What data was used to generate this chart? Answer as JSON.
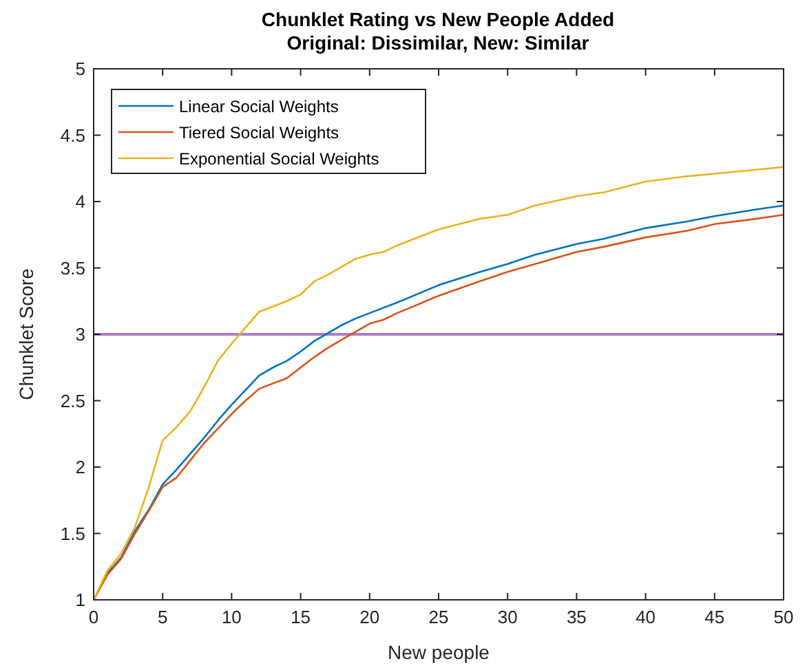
{
  "chart_data": {
    "type": "line",
    "title": "Chunklet Rating vs New People Added",
    "subtitle": "Original: Dissimilar, New: Similar",
    "xlabel": "New people",
    "ylabel": "Chunklet Score",
    "xlim": [
      0,
      50
    ],
    "ylim": [
      1,
      5
    ],
    "xticks": [
      0,
      5,
      10,
      15,
      20,
      25,
      30,
      35,
      40,
      45,
      50
    ],
    "yticks": [
      1,
      1.5,
      2,
      2.5,
      3,
      3.5,
      4,
      4.5,
      5
    ],
    "legend": "top left",
    "grid": false,
    "series": [
      {
        "name": "Linear Social Weights",
        "color": "#0072bd",
        "x": [
          0,
          1,
          2,
          3,
          4,
          5,
          6,
          7,
          8,
          9,
          10,
          11,
          12,
          13,
          14,
          15,
          16,
          17,
          18,
          19,
          20,
          22,
          25,
          28,
          30,
          32,
          35,
          37,
          40,
          43,
          45,
          48,
          50
        ],
        "values": [
          1,
          1.2,
          1.32,
          1.52,
          1.68,
          1.87,
          1.98,
          2.1,
          2.22,
          2.35,
          2.47,
          2.58,
          2.69,
          2.75,
          2.8,
          2.87,
          2.95,
          3.01,
          3.07,
          3.12,
          3.16,
          3.24,
          3.37,
          3.47,
          3.53,
          3.6,
          3.68,
          3.72,
          3.8,
          3.85,
          3.89,
          3.94,
          3.97
        ]
      },
      {
        "name": "Tiered Social Weights",
        "color": "#d95319",
        "x": [
          0,
          1,
          2,
          3,
          4,
          5,
          6,
          7,
          8,
          9,
          10,
          11,
          12,
          13,
          14,
          15,
          16,
          17,
          18,
          19,
          20,
          21,
          22,
          25,
          28,
          30,
          32,
          35,
          37,
          40,
          43,
          45,
          48,
          50
        ],
        "values": [
          1,
          1.19,
          1.31,
          1.5,
          1.67,
          1.85,
          1.92,
          2.05,
          2.18,
          2.29,
          2.4,
          2.5,
          2.59,
          2.63,
          2.67,
          2.75,
          2.83,
          2.9,
          2.96,
          3.02,
          3.08,
          3.11,
          3.16,
          3.29,
          3.4,
          3.47,
          3.53,
          3.62,
          3.66,
          3.73,
          3.78,
          3.83,
          3.87,
          3.9
        ]
      },
      {
        "name": "Exponential Social Weights",
        "color": "#edb120",
        "x": [
          0,
          1,
          2,
          3,
          4,
          5,
          6,
          7,
          8,
          9,
          10,
          11,
          12,
          13,
          14,
          15,
          16,
          17,
          18,
          19,
          20,
          21,
          22,
          25,
          28,
          30,
          32,
          35,
          37,
          40,
          43,
          45,
          48,
          50
        ],
        "values": [
          1,
          1.22,
          1.35,
          1.55,
          1.85,
          2.2,
          2.3,
          2.42,
          2.6,
          2.8,
          2.93,
          3.05,
          3.17,
          3.21,
          3.25,
          3.3,
          3.4,
          3.45,
          3.51,
          3.57,
          3.6,
          3.62,
          3.67,
          3.79,
          3.87,
          3.9,
          3.97,
          4.04,
          4.07,
          4.15,
          4.19,
          4.21,
          4.24,
          4.26
        ]
      }
    ],
    "ref_lines": [
      {
        "axis": "y",
        "value": 3,
        "color": "#b07cc6"
      }
    ]
  }
}
